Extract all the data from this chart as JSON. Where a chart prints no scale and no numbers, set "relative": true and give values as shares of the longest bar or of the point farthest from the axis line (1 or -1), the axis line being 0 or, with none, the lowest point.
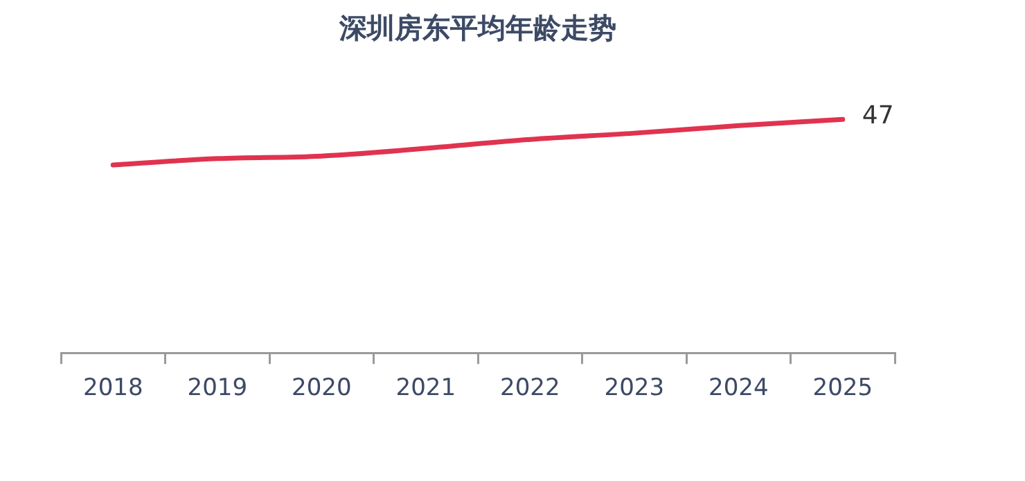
{
  "chart_data": {
    "type": "line",
    "title": "深圳房东平均年龄走势",
    "relative": true,
    "categories": [
      "2018",
      "2019",
      "2020",
      "2021",
      "2022",
      "2023",
      "2024",
      "2025"
    ],
    "series": [
      {
        "color": "#e0334f",
        "values": [
          0.805,
          0.832,
          0.843,
          0.876,
          0.914,
          0.941,
          0.973,
          1
        ]
      }
    ],
    "annotations": [
      {
        "text": "47",
        "x": "2025"
      }
    ],
    "legend": false,
    "grid": false,
    "marker": "none"
  }
}
